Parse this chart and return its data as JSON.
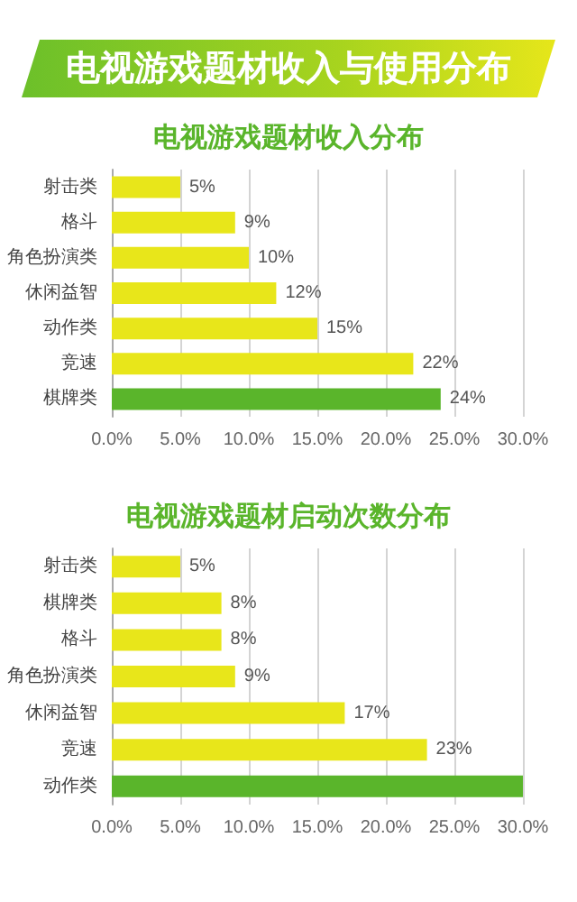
{
  "chart_data": [
    {
      "type": "bar",
      "orientation": "horizontal",
      "title": "电视游戏题材收入与使用分布",
      "subtitle": "电视游戏题材收入分布",
      "categories": [
        "射击类",
        "格斗",
        "角色扮演类",
        "休闲益智",
        "动作类",
        "竞速",
        "棋牌类"
      ],
      "values": [
        5,
        9,
        10,
        12,
        15,
        22,
        24
      ],
      "value_labels": [
        "5%",
        "9%",
        "10%",
        "12%",
        "15%",
        "22%",
        "24%"
      ],
      "colors": [
        "#e8e61a",
        "#e8e61a",
        "#e8e61a",
        "#e8e61a",
        "#e8e61a",
        "#e8e61a",
        "#5ab52b"
      ],
      "xlim": [
        0,
        30
      ],
      "xticks": [
        {
          "value": 0,
          "label": "0.0%"
        },
        {
          "value": 5,
          "label": "5.0%"
        },
        {
          "value": 10,
          "label": "10.0%"
        },
        {
          "value": 15,
          "label": "15.0%"
        },
        {
          "value": 20,
          "label": "20.0%"
        },
        {
          "value": 25,
          "label": "25.0%"
        },
        {
          "value": 30,
          "label": "30.0%"
        }
      ],
      "grid": "x"
    },
    {
      "type": "bar",
      "orientation": "horizontal",
      "title": "电视游戏题材启动次数分布",
      "categories": [
        "射击类",
        "棋牌类",
        "格斗",
        "角色扮演类",
        "休闲益智",
        "竞速",
        "动作类"
      ],
      "values": [
        5,
        8,
        8,
        9,
        17,
        23,
        30
      ],
      "value_labels": [
        "5%",
        "8%",
        "8%",
        "9%",
        "17%",
        "23%",
        null
      ],
      "colors": [
        "#e8e61a",
        "#e8e61a",
        "#e8e61a",
        "#e8e61a",
        "#e8e61a",
        "#e8e61a",
        "#5ab52b"
      ],
      "xlim": [
        0,
        30
      ],
      "xticks": [
        {
          "value": 0,
          "label": "0.0%"
        },
        {
          "value": 5,
          "label": "5.0%"
        },
        {
          "value": 10,
          "label": "10.0%"
        },
        {
          "value": 15,
          "label": "15.0%"
        },
        {
          "value": 20,
          "label": "20.0%"
        },
        {
          "value": 25,
          "label": "25.0%"
        },
        {
          "value": 30,
          "label": "30.0%"
        }
      ],
      "grid": "x"
    }
  ]
}
